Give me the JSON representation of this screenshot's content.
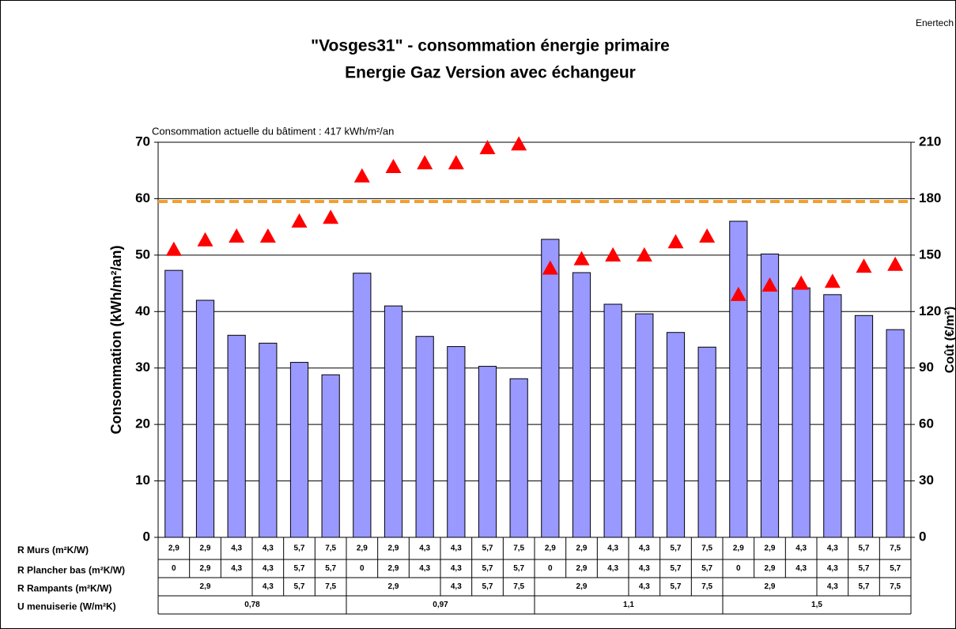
{
  "chart_data": {
    "type": "bar",
    "title": "\"Vosges31\" - consommation énergie primaire",
    "subtitle": "Energie Gaz Version avec échangeur",
    "source": "Enertech",
    "annotation": "Consommation actuelle du bâtiment : 417 kWh/m²/an",
    "reference_line": {
      "value": 59.5,
      "color": "#f0a030"
    },
    "ylabel": "Consommation (kWh/m²/an)",
    "y2label": "Coût (€/m²)",
    "ylim": [
      0,
      70
    ],
    "yticks": [
      0,
      10,
      20,
      30,
      40,
      50,
      60,
      70
    ],
    "y2lim": [
      0,
      210
    ],
    "y2ticks": [
      0,
      30,
      60,
      90,
      120,
      150,
      180,
      210
    ],
    "grid": true,
    "series": [
      {
        "color": "#9999ff",
        "values": [
          47.3,
          42,
          35.8,
          34.4,
          31,
          28.8,
          46.8,
          41,
          35.6,
          33.8,
          30.3,
          28.1,
          52.8,
          46.9,
          41.3,
          39.6,
          36.3,
          33.7,
          56,
          50.2,
          44.2,
          43,
          39.3,
          36.8
        ]
      },
      {
        "color": "#ff0000",
        "axis": "y2",
        "values": [
          153,
          158,
          160,
          160,
          168,
          170,
          192,
          197,
          199,
          199,
          207,
          209,
          143,
          148,
          150,
          150,
          157,
          160,
          129,
          134,
          135,
          136,
          144,
          145
        ]
      }
    ],
    "table": {
      "row_labels": [
        "R Murs (m²K/W)",
        "R Plancher bas (m²K/W)",
        "R Rampants (m²K/W)",
        "U menuiserie (W/m²K)"
      ],
      "murs": [
        "2,9",
        "2,9",
        "4,3",
        "4,3",
        "5,7",
        "7,5",
        "2,9",
        "2,9",
        "4,3",
        "4,3",
        "5,7",
        "7,5",
        "2,9",
        "2,9",
        "4,3",
        "4,3",
        "5,7",
        "7,5",
        "2,9",
        "2,9",
        "4,3",
        "4,3",
        "5,7",
        "7,5"
      ],
      "plancher": [
        "0",
        "2,9",
        "4,3",
        "4,3",
        "5,7",
        "5,7",
        "0",
        "2,9",
        "4,3",
        "4,3",
        "5,7",
        "5,7",
        "0",
        "2,9",
        "4,3",
        "4,3",
        "5,7",
        "5,7",
        "0",
        "2,9",
        "4,3",
        "4,3",
        "5,7",
        "5,7"
      ],
      "rampants": [
        "2,9",
        "4,3",
        "5,7",
        "7,5",
        "2,9",
        "4,3",
        "5,7",
        "7,5",
        "2,9",
        "4,3",
        "5,7",
        "7,5",
        "2,9",
        "4,3",
        "5,7",
        "7,5"
      ],
      "menuiserie": [
        "0,78",
        "0,97",
        "1,1",
        "1,5"
      ]
    }
  }
}
